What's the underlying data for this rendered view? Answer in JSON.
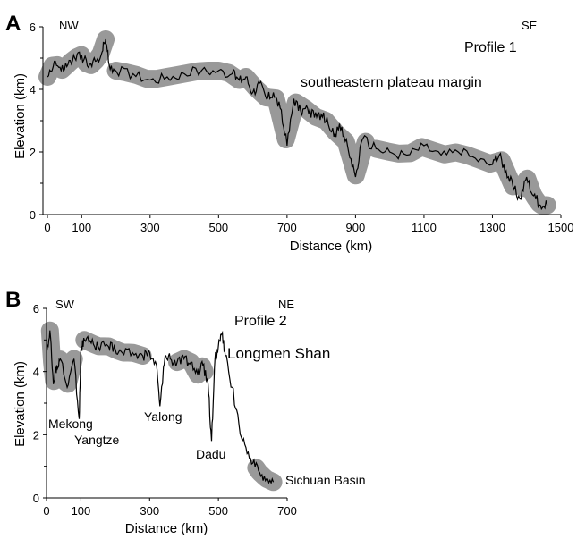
{
  "chart_data": [
    {
      "panel_label": "A",
      "type": "line",
      "title": "Profile 1",
      "xlabel": "Distance (km)",
      "ylabel": "Elevation (km)",
      "xlim": [
        0,
        1500
      ],
      "ylim": [
        0,
        6
      ],
      "x_ticks": [
        "0",
        "100",
        "300",
        "500",
        "700",
        "900",
        "1100",
        "1300",
        "1500"
      ],
      "y_ticks": [
        "0",
        "2",
        "4",
        "6"
      ],
      "direction_labels": [
        "NW",
        "SE"
      ],
      "annotations": [
        "southeastern plateau margin"
      ],
      "series": [
        {
          "x": [
            0,
            20,
            40,
            60,
            80,
            100,
            120,
            140,
            160,
            170,
            180,
            200,
            250,
            300,
            350,
            400,
            450,
            500,
            540,
            560,
            580,
            600,
            620,
            640,
            660,
            680,
            700,
            720,
            740,
            760,
            780,
            800,
            820,
            840,
            860,
            880,
            900,
            920,
            960,
            1000,
            1050,
            1100,
            1150,
            1200,
            1250,
            1300,
            1320,
            1340,
            1360,
            1380,
            1400,
            1420,
            1440,
            1460
          ],
          "y": [
            4.4,
            4.9,
            4.6,
            4.8,
            5.0,
            5.1,
            4.7,
            4.9,
            5.2,
            5.6,
            4.8,
            4.6,
            4.5,
            4.3,
            4.4,
            4.5,
            4.6,
            4.6,
            4.5,
            4.3,
            4.4,
            3.9,
            4.2,
            3.7,
            3.9,
            3.4,
            2.2,
            3.7,
            3.3,
            3.4,
            3.1,
            3.2,
            2.9,
            2.6,
            2.8,
            2.0,
            1.2,
            2.4,
            2.1,
            2.0,
            1.9,
            2.2,
            1.9,
            2.0,
            1.8,
            1.6,
            1.9,
            1.4,
            0.9,
            0.5,
            1.2,
            0.6,
            0.3,
            0.3
          ]
        }
      ],
      "highlight_segments": [
        [
          0,
          170
        ],
        [
          200,
          560
        ],
        [
          580,
          930
        ],
        [
          960,
          1360
        ],
        [
          1390,
          1460
        ]
      ]
    },
    {
      "panel_label": "B",
      "type": "line",
      "title": "Profile 2",
      "xlabel": "Distance (km)",
      "ylabel": "Elevation (km)",
      "xlim": [
        0,
        700
      ],
      "ylim": [
        0,
        6
      ],
      "x_ticks": [
        "0",
        "100",
        "300",
        "500",
        "700"
      ],
      "y_ticks": [
        "0",
        "2",
        "4",
        "6"
      ],
      "direction_labels": [
        "SW",
        "NE"
      ],
      "annotations": [
        "Mekong",
        "Yangtze",
        "Yalong",
        "Dadu",
        "Longmen Shan",
        "Sichuan Basin"
      ],
      "series": [
        {
          "x": [
            0,
            10,
            20,
            30,
            40,
            60,
            80,
            95,
            100,
            110,
            130,
            150,
            180,
            200,
            220,
            250,
            280,
            300,
            320,
            330,
            345,
            360,
            380,
            400,
            420,
            440,
            455,
            470,
            480,
            490,
            500,
            510,
            520,
            540,
            560,
            580,
            600,
            620,
            640,
            660
          ],
          "y": [
            4.6,
            5.3,
            3.6,
            4.2,
            4.4,
            3.5,
            4.4,
            2.5,
            4.7,
            5.0,
            4.9,
            4.8,
            4.8,
            4.7,
            4.6,
            4.6,
            4.5,
            4.6,
            4.2,
            2.9,
            4.5,
            4.4,
            4.3,
            4.4,
            4.3,
            3.9,
            4.2,
            3.6,
            1.8,
            4.4,
            4.8,
            5.2,
            4.5,
            3.5,
            2.3,
            1.6,
            1.1,
            0.8,
            0.6,
            0.5
          ]
        }
      ],
      "highlight_segments": [
        [
          10,
          80
        ],
        [
          110,
          280
        ],
        [
          380,
          460
        ],
        [
          610,
          660
        ]
      ]
    }
  ]
}
